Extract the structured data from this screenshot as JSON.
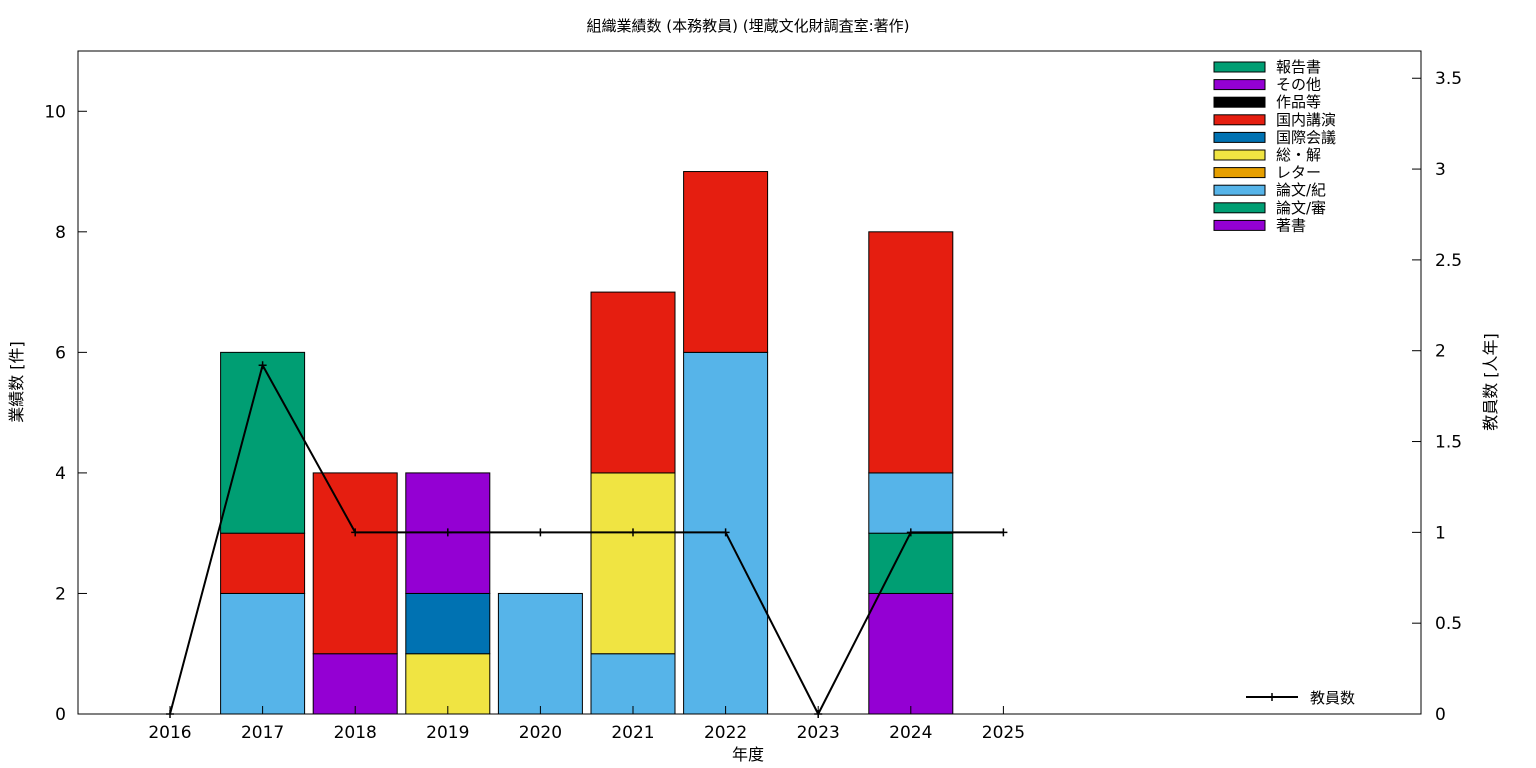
{
  "chart_data": {
    "type": "bar",
    "stacked": true,
    "title": "組織業績数 (本務教員) (埋蔵文化財調査室:著作)",
    "xlabel": "年度",
    "ylabel": "業績数 [件]",
    "y2label": "教員数 [人年]",
    "categories": [
      "2016",
      "2017",
      "2018",
      "2019",
      "2020",
      "2021",
      "2022",
      "2023",
      "2024",
      "2025"
    ],
    "ylim": [
      0,
      11
    ],
    "y2lim": [
      0,
      3.65
    ],
    "yticks": [
      0,
      2,
      4,
      6,
      8,
      10
    ],
    "y2ticks": [
      0,
      0.5,
      1,
      1.5,
      2,
      2.5,
      3,
      3.5
    ],
    "grid": false,
    "legend_position": "top-right",
    "series": [
      {
        "name": "著書",
        "color": "#9400D3",
        "values": [
          0,
          0,
          1,
          0,
          0,
          0,
          0,
          0,
          2,
          0
        ]
      },
      {
        "name": "論文/審",
        "color": "#009E73",
        "values": [
          0,
          0,
          0,
          0,
          0,
          0,
          0,
          0,
          1,
          0
        ]
      },
      {
        "name": "論文/紀",
        "color": "#56B4E9",
        "values": [
          0,
          2,
          0,
          0,
          2,
          1,
          6,
          0,
          1,
          0
        ]
      },
      {
        "name": "レター",
        "color": "#E69F00",
        "values": [
          0,
          0,
          0,
          0,
          0,
          0,
          0,
          0,
          0,
          0
        ]
      },
      {
        "name": "総・解",
        "color": "#F0E442",
        "values": [
          0,
          0,
          0,
          1,
          0,
          3,
          0,
          0,
          0,
          0
        ]
      },
      {
        "name": "国際会議",
        "color": "#0072B2",
        "values": [
          0,
          0,
          0,
          1,
          0,
          0,
          0,
          0,
          0,
          0
        ]
      },
      {
        "name": "国内講演",
        "color": "#E51E10",
        "values": [
          0,
          1,
          3,
          0,
          0,
          3,
          3,
          0,
          4,
          0
        ]
      },
      {
        "name": "作品等",
        "color": "#000000",
        "values": [
          0,
          0,
          0,
          0,
          0,
          0,
          0,
          0,
          0,
          0
        ]
      },
      {
        "name": "その他",
        "color": "#9400D3",
        "values": [
          0,
          0,
          0,
          2,
          0,
          0,
          0,
          0,
          0,
          0
        ]
      },
      {
        "name": "報告書",
        "color": "#009E73",
        "values": [
          0,
          3,
          0,
          0,
          0,
          0,
          0,
          0,
          0,
          0
        ]
      }
    ],
    "legend_order": [
      "報告書",
      "その他",
      "作品等",
      "国内講演",
      "国際会議",
      "総・解",
      "レター",
      "論文/紀",
      "論文/審",
      "著書"
    ],
    "line_series": {
      "name": "教員数",
      "color": "#000000",
      "axis": "y2",
      "values": [
        0,
        1.92,
        1,
        1,
        1,
        1,
        1,
        0,
        1,
        1
      ]
    }
  }
}
